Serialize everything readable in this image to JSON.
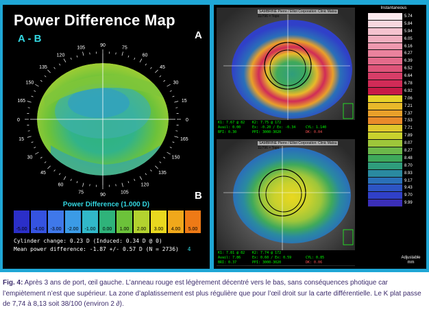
{
  "left": {
    "title": "Power Difference Map",
    "subtitle": "A - B",
    "corner_a": "A",
    "corner_b": "B",
    "angle_labels": [
      "0",
      "15",
      "30",
      "45",
      "60",
      "75",
      "90",
      "105",
      "120",
      "135",
      "150",
      "165"
    ],
    "scale_title": "Power Difference (1.000 D)",
    "scale_values": [
      "-5.00",
      "-4.00",
      "-3.00",
      "-2.00",
      "-1.00",
      "0.00",
      "1.00",
      "2.00",
      "3.00",
      "4.00",
      "5.00"
    ],
    "scale_colors": [
      "#2b2fc8",
      "#3553e0",
      "#3f78ea",
      "#3b9be6",
      "#31b8c8",
      "#2fb37a",
      "#6cc23a",
      "#b3d22f",
      "#e9d81f",
      "#f0a81b",
      "#ee7a16"
    ],
    "cylinder_line": "Cylinder change:  0.23 D (Induced:  0.34 D @  0)",
    "mean_line": "Mean power difference:  -1.87 +/-  0.57 D (N = 2736)",
    "mean_tag": "4"
  },
  "right": {
    "top_header": "SAMBRINE Pierre / Elliot Corporation: Clinic Matsu",
    "top_header2": "11/796 × Topo",
    "bottom_header": "SAMBRINE Pierre / Elliot Corporation: Clinic Matsu",
    "bottom_header2": "11/796 × Topo",
    "top_info": [
      "K1: 7.67 @ 82",
      "K2: 7.75 @ 172",
      "Avail: 0.00",
      "BFI: 0.30",
      "Ex: -0.20 / Ex: -0.34",
      "PPI: 3000-3020",
      "CYL: 1.140",
      "DK: 0.04"
    ],
    "bottom_info": [
      "K1: 7.81 @ 82",
      "K2: 7.74 @ 172",
      "Avail: 7.86",
      "BRI: 0.37",
      "Ex: 0.60 / Ex: 0.59",
      "PPI: 3000-3020",
      "CYL: 0.85",
      "DK: 0.06"
    ],
    "legend_title": "Instantaneous",
    "legend_values": [
      "5.74",
      "5.84",
      "5.94",
      "6.05",
      "6.16",
      "6.27",
      "6.39",
      "6.52",
      "6.64",
      "6.78",
      "6.92",
      "7.06",
      "7.21",
      "7.37",
      "7.53",
      "7.71",
      "7.89",
      "8.07",
      "8.27",
      "8.48",
      "8.70",
      "8.93",
      "9.17",
      "9.43",
      "9.70",
      "9.99"
    ],
    "legend_colors": [
      "#fbe9ee",
      "#f8d7de",
      "#f5c3cf",
      "#f2aebf",
      "#ee98ae",
      "#ea829d",
      "#e46b8b",
      "#de5479",
      "#d73e68",
      "#d02b57",
      "#c81b47",
      "#e7d22a",
      "#e8b92a",
      "#e9a02a",
      "#ea8a2a",
      "#e0c82c",
      "#c9d12d",
      "#9ec63a",
      "#6cb84a",
      "#3fa95b",
      "#2f9d7c",
      "#2a8aa0",
      "#2a70b8",
      "#2d55c4",
      "#3040c8",
      "#3b2fb8"
    ],
    "adjustable": "Adjustable",
    "adjustable_unit": "mm"
  },
  "caption": {
    "label": "Fig. 4:",
    "text": " Après 3 ans de port, œil gauche. L’anneau rouge est légèrement décentré vers le bas, sans conséquences photique car l’empiètement n’est que supérieur. La zone d’aplatissement est plus régulière que pour l’œil droit sur la carte différentielle. Le K plat passe de 7,74 à 8,13 soit 38/100 (environ 2 ∂)."
  }
}
